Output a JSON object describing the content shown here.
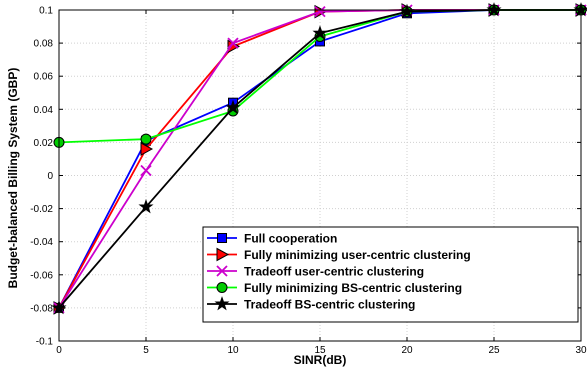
{
  "chart_data": {
    "type": "line",
    "title": "",
    "xlabel": "SINR(dB)",
    "ylabel": "Budget-balanced Billing System (GBP)",
    "xlim": [
      0,
      30
    ],
    "ylim": [
      -0.1,
      0.1
    ],
    "x_ticks": [
      0,
      5,
      10,
      15,
      20,
      25,
      30
    ],
    "x_tick_labels": [
      "0",
      "5",
      "10",
      "15",
      "20",
      "25",
      "30"
    ],
    "y_ticks": [
      -0.1,
      -0.08,
      -0.06,
      -0.04,
      -0.02,
      0,
      0.02,
      0.04,
      0.06,
      0.08,
      0.1
    ],
    "y_tick_labels": [
      "-0.1",
      "-0.08",
      "-0.06",
      "-0.04",
      "-0.02",
      "0",
      "0.02",
      "0.04",
      "0.06",
      "0.08",
      "0.1"
    ],
    "grid": true,
    "legend_position": "bottom-right",
    "x": [
      0,
      5,
      10,
      15,
      20,
      25,
      30
    ],
    "series": [
      {
        "name": "Full cooperation",
        "values": [
          -0.08,
          0.021,
          0.044,
          0.081,
          0.098,
          0.1,
          0.1
        ],
        "color": "#0000ff",
        "marker": "square",
        "marker_fill": "#0000ff",
        "marker_edge": "#000000"
      },
      {
        "name": "Fully minimizing user-centric clustering",
        "values": [
          -0.08,
          0.016,
          0.078,
          0.099,
          0.1,
          0.1,
          0.1
        ],
        "color": "#ff0000",
        "marker": "triangle-right",
        "marker_fill": "#ff0000",
        "marker_edge": "#000000"
      },
      {
        "name": "Tradeoff user-centric clustering",
        "values": [
          -0.08,
          0.003,
          0.08,
          0.099,
          0.1,
          0.1,
          0.1
        ],
        "color": "#cc00cc",
        "marker": "x",
        "marker_fill": "none",
        "marker_edge": "#cc00cc"
      },
      {
        "name": "Fully minimizing BS-centric clustering",
        "values": [
          0.02,
          0.022,
          0.039,
          0.084,
          0.099,
          0.1,
          0.1
        ],
        "color": "#00ff00",
        "marker": "circle",
        "marker_fill": "#00cc00",
        "marker_edge": "#000000"
      },
      {
        "name": "Tradeoff BS-centric clustering",
        "values": [
          -0.08,
          -0.019,
          0.041,
          0.086,
          0.099,
          0.1,
          0.1
        ],
        "color": "#000000",
        "marker": "star",
        "marker_fill": "#000000",
        "marker_edge": "#000000"
      }
    ]
  }
}
